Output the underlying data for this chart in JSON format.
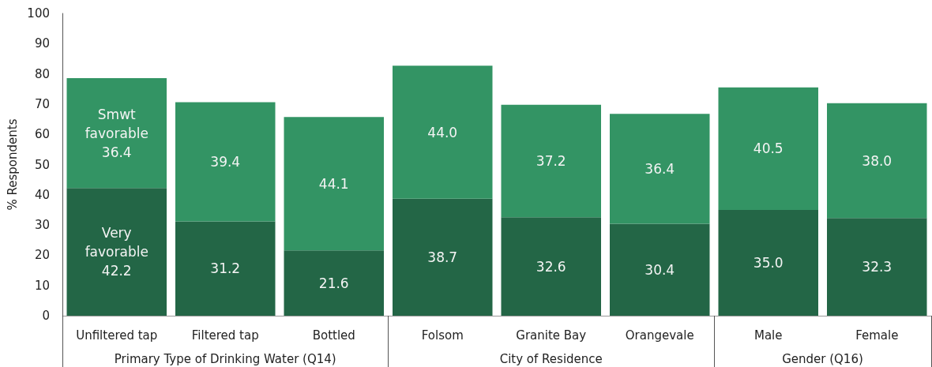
{
  "chart_data": {
    "type": "bar",
    "ylabel": "% Respondents",
    "stacked": true,
    "categories": [
      "Unfiltered tap",
      "Filtered tap",
      "Bottled",
      "Folsom",
      "Granite Bay",
      "Orangevale",
      "Male",
      "Female"
    ],
    "series": [
      {
        "name": "Very favorable",
        "color": "#236646",
        "values": [
          42.2,
          31.2,
          21.6,
          38.7,
          32.6,
          30.4,
          35.0,
          32.3
        ],
        "value_labels": [
          "42.2",
          "31.2",
          "21.6",
          "38.7",
          "32.6",
          "30.4",
          "35.0",
          "32.3"
        ]
      },
      {
        "name": "Smwt favorable",
        "color": "#339464",
        "values": [
          36.4,
          39.4,
          44.1,
          44.0,
          37.2,
          36.4,
          40.5,
          38.0
        ],
        "value_labels": [
          "36.4",
          "39.4",
          "44.1",
          "44.0",
          "37.2",
          "36.4",
          "40.5",
          "38.0"
        ]
      }
    ],
    "ylim": [
      0,
      100
    ],
    "yticks": [
      0,
      10,
      20,
      30,
      40,
      50,
      60,
      70,
      80,
      90,
      100
    ],
    "annotations": [
      "Primary Type of Drinking Water (Q14)",
      "City of Residence",
      "Gender (Q16)"
    ]
  }
}
